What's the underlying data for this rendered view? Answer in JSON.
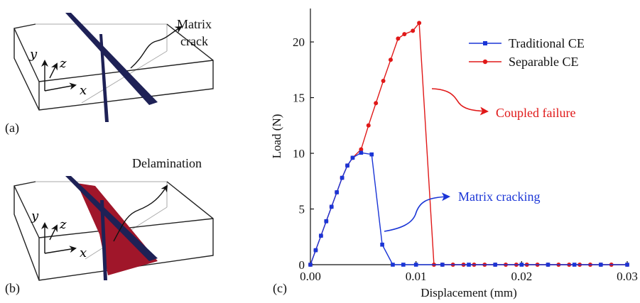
{
  "panels": {
    "a": {
      "label": "(a)",
      "annotation_line1": "Matrix",
      "annotation_line2": "crack",
      "axis_y": "y",
      "axis_z": "z",
      "axis_x": "x"
    },
    "b": {
      "label": "(b)",
      "annotation": "Delamination",
      "axis_y": "y",
      "axis_z": "z",
      "axis_x": "x"
    },
    "c": {
      "label": "(c)"
    }
  },
  "colors": {
    "crack_plane": "#1e2156",
    "delamination": "#a0162a",
    "traditional": "#1a35d6",
    "separable": "#e01818",
    "box": "#222222",
    "box_light": "#aaaaaa"
  },
  "chart_data": {
    "type": "line",
    "xlabel": "Displacement (mm)",
    "ylabel": "Load (N)",
    "xlim": [
      0,
      0.03
    ],
    "ylim": [
      0,
      23
    ],
    "x_ticks": [
      0,
      0.01,
      0.02,
      0.03
    ],
    "x_tick_labels": [
      "0.00",
      "0.01",
      "0.02",
      "0.03"
    ],
    "y_ticks": [
      0,
      5,
      10,
      15,
      20
    ],
    "y_tick_labels": [
      "0",
      "5",
      "10",
      "15",
      "20"
    ],
    "grid": false,
    "legend_position": "top-right",
    "series": [
      {
        "name": "Traditional CE",
        "color": "#1a35d6",
        "marker": "square",
        "points": [
          [
            0,
            0
          ],
          [
            0.0005,
            1.3
          ],
          [
            0.001,
            2.6
          ],
          [
            0.0015,
            3.9
          ],
          [
            0.002,
            5.2
          ],
          [
            0.0025,
            6.5
          ],
          [
            0.003,
            7.8
          ],
          [
            0.0035,
            8.9
          ],
          [
            0.004,
            9.6
          ],
          [
            0.0048,
            10.05
          ],
          [
            0.0058,
            9.9
          ],
          [
            0.0068,
            1.8
          ],
          [
            0.0078,
            0
          ],
          [
            0.0088,
            0
          ],
          [
            0.01,
            0
          ],
          [
            0.0125,
            0
          ],
          [
            0.015,
            0
          ],
          [
            0.0175,
            0
          ],
          [
            0.02,
            0
          ],
          [
            0.0225,
            0
          ],
          [
            0.025,
            0
          ],
          [
            0.0275,
            0
          ],
          [
            0.03,
            0
          ]
        ]
      },
      {
        "name": "Separable CE",
        "color": "#e01818",
        "marker": "circle",
        "points": [
          [
            0,
            0
          ],
          [
            0.0005,
            1.3
          ],
          [
            0.001,
            2.6
          ],
          [
            0.0015,
            3.9
          ],
          [
            0.002,
            5.2
          ],
          [
            0.0025,
            6.5
          ],
          [
            0.003,
            7.8
          ],
          [
            0.0035,
            8.9
          ],
          [
            0.004,
            9.6
          ],
          [
            0.0048,
            10.35
          ],
          [
            0.0055,
            12.5
          ],
          [
            0.0062,
            14.5
          ],
          [
            0.0069,
            16.5
          ],
          [
            0.0076,
            18.4
          ],
          [
            0.0083,
            20.3
          ],
          [
            0.0089,
            20.7
          ],
          [
            0.0097,
            21.0
          ],
          [
            0.0103,
            21.7
          ],
          [
            0.0117,
            0
          ],
          [
            0.0125,
            0
          ],
          [
            0.0135,
            0
          ],
          [
            0.0145,
            0
          ],
          [
            0.0155,
            0
          ],
          [
            0.0165,
            0
          ],
          [
            0.0175,
            0
          ],
          [
            0.0185,
            0
          ],
          [
            0.0195,
            0
          ],
          [
            0.0205,
            0
          ],
          [
            0.0215,
            0
          ],
          [
            0.0225,
            0
          ],
          [
            0.0235,
            0
          ],
          [
            0.0245,
            0
          ],
          [
            0.0255,
            0
          ],
          [
            0.0265,
            0
          ],
          [
            0.0275,
            0
          ],
          [
            0.0285,
            0
          ],
          [
            0.03,
            0
          ]
        ]
      }
    ],
    "annotations": [
      {
        "text": "Coupled failure",
        "color": "#e01818",
        "anchor": [
          0.0116,
          15.4
        ],
        "label_at": [
          0.0175,
          13.3
        ]
      },
      {
        "text": "Matrix cracking",
        "color": "#1a35d6",
        "anchor": [
          0.0068,
          2.9
        ],
        "label_at": [
          0.0138,
          5.8
        ]
      }
    ]
  }
}
